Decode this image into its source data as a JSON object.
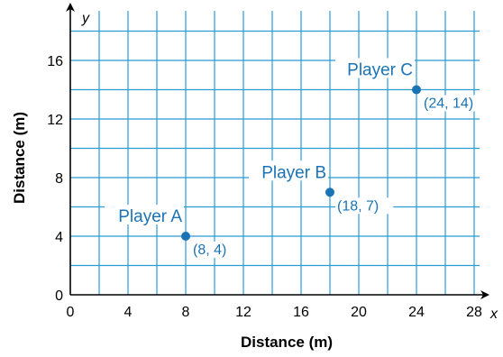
{
  "chart_data": {
    "type": "scatter",
    "xlabel": "Distance (m)",
    "ylabel": "Distance (m)",
    "x_axis_letter": "x",
    "y_axis_letter": "y",
    "xlim": [
      0,
      28
    ],
    "ylim": [
      0,
      18
    ],
    "grid": true,
    "grid_step": 2,
    "x_ticks": [
      0,
      4,
      8,
      12,
      16,
      20,
      24,
      28
    ],
    "y_ticks": [
      0,
      4,
      8,
      12,
      16
    ],
    "points": [
      {
        "name": "Player A",
        "x": 8,
        "y": 4,
        "coord_label": "(8, 4)"
      },
      {
        "name": "Player B",
        "x": 18,
        "y": 7,
        "coord_label": "(18, 7)"
      },
      {
        "name": "Player C",
        "x": 24,
        "y": 14,
        "coord_label": "(24, 14)"
      }
    ],
    "colors": {
      "grid": "#2b9bd6",
      "axis": "#000000",
      "point": "#1a73b5",
      "label": "#1a73b5",
      "text": "#000000"
    }
  }
}
